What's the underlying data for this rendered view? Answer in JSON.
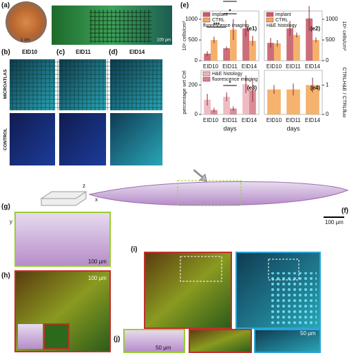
{
  "figure": {
    "labels": {
      "a": "(a)",
      "b": "(b)",
      "c": "(c)",
      "d": "(d)",
      "e": "(e)",
      "f": "(f)",
      "g": "(g)",
      "h": "(h)",
      "i": "(i)",
      "j": "(j)"
    },
    "columns": [
      "EID10",
      "EID11",
      "EID14"
    ],
    "rows": [
      "MICROATLAS",
      "CONTROL"
    ],
    "axes": {
      "x": "x",
      "y": "y",
      "z": "z"
    },
    "scales": {
      "a1": "1 cm",
      "a2": "100 µm",
      "f": "100 µm",
      "g": "100 µm",
      "h": "100 µm",
      "j1": "50 µm",
      "j2": "50 µm"
    }
  },
  "chart_data": [
    {
      "type": "bar",
      "panel": "(e1)",
      "caption": "fluorescence imaging",
      "ylabel": "10⁶ cells/cm³",
      "axis_position": "left",
      "categories": [
        "EID10",
        "EID11",
        "EID14"
      ],
      "series": [
        {
          "name": "implant",
          "color": "#c75e6c",
          "values": [
            170,
            300,
            780
          ],
          "errors": [
            60,
            40,
            200
          ]
        },
        {
          "name": "CTRL",
          "color": "#f4a95c",
          "values": [
            500,
            750,
            480
          ],
          "errors": [
            80,
            250,
            120
          ]
        }
      ],
      "ylim": [
        0,
        1200
      ],
      "yticks": [
        0,
        500,
        1000
      ],
      "annotations": [
        "***",
        "*",
        "***"
      ]
    },
    {
      "type": "bar",
      "panel": "(e2)",
      "caption": "H&E histology",
      "ylabel": "10⁶ cells/cm³",
      "axis_position": "right",
      "categories": [
        "EID10",
        "EID11",
        "EID14"
      ],
      "series": [
        {
          "name": "implant",
          "color": "#c75e6c",
          "values": [
            430,
            780,
            1020
          ],
          "errors": [
            120,
            180,
            300
          ]
        },
        {
          "name": "CTRL",
          "color": "#f4a95c",
          "values": [
            420,
            620,
            500
          ],
          "errors": [
            80,
            60,
            60
          ]
        }
      ],
      "ylim": [
        0,
        1200
      ],
      "yticks": [
        0,
        500,
        1000
      ]
    },
    {
      "type": "bar",
      "panel": "(e3)",
      "ylabel": "percentage wrt Ctrl",
      "xlabel": "days",
      "axis_position": "left",
      "categories": [
        "EID10",
        "EID11",
        "EID14"
      ],
      "series": [
        {
          "name": "H&E histology",
          "color": "#eeb4bd",
          "values": [
            100,
            120,
            205
          ],
          "errors": [
            40,
            30,
            60
          ]
        },
        {
          "name": "fluorescence imaging",
          "color": "#d6808c",
          "values": [
            30,
            40,
            165
          ],
          "errors": [
            15,
            15,
            80
          ]
        }
      ],
      "ylim": [
        0,
        300
      ],
      "yticks": [
        0,
        200
      ],
      "annotations": [
        "*"
      ]
    },
    {
      "type": "bar",
      "panel": "(e4)",
      "ylabel": "CTRLH&E / CTRLfluo",
      "xlabel": "days",
      "axis_position": "right",
      "categories": [
        "EID10",
        "EID11",
        "EID14"
      ],
      "series": [
        {
          "color": "#f4ab5e",
          "values": [
            0.85,
            0.85,
            1.0
          ],
          "errors": [
            0.15,
            0.2,
            0.25
          ]
        }
      ],
      "ylim": [
        0,
        1.5
      ],
      "yticks": [
        0,
        1
      ]
    }
  ]
}
